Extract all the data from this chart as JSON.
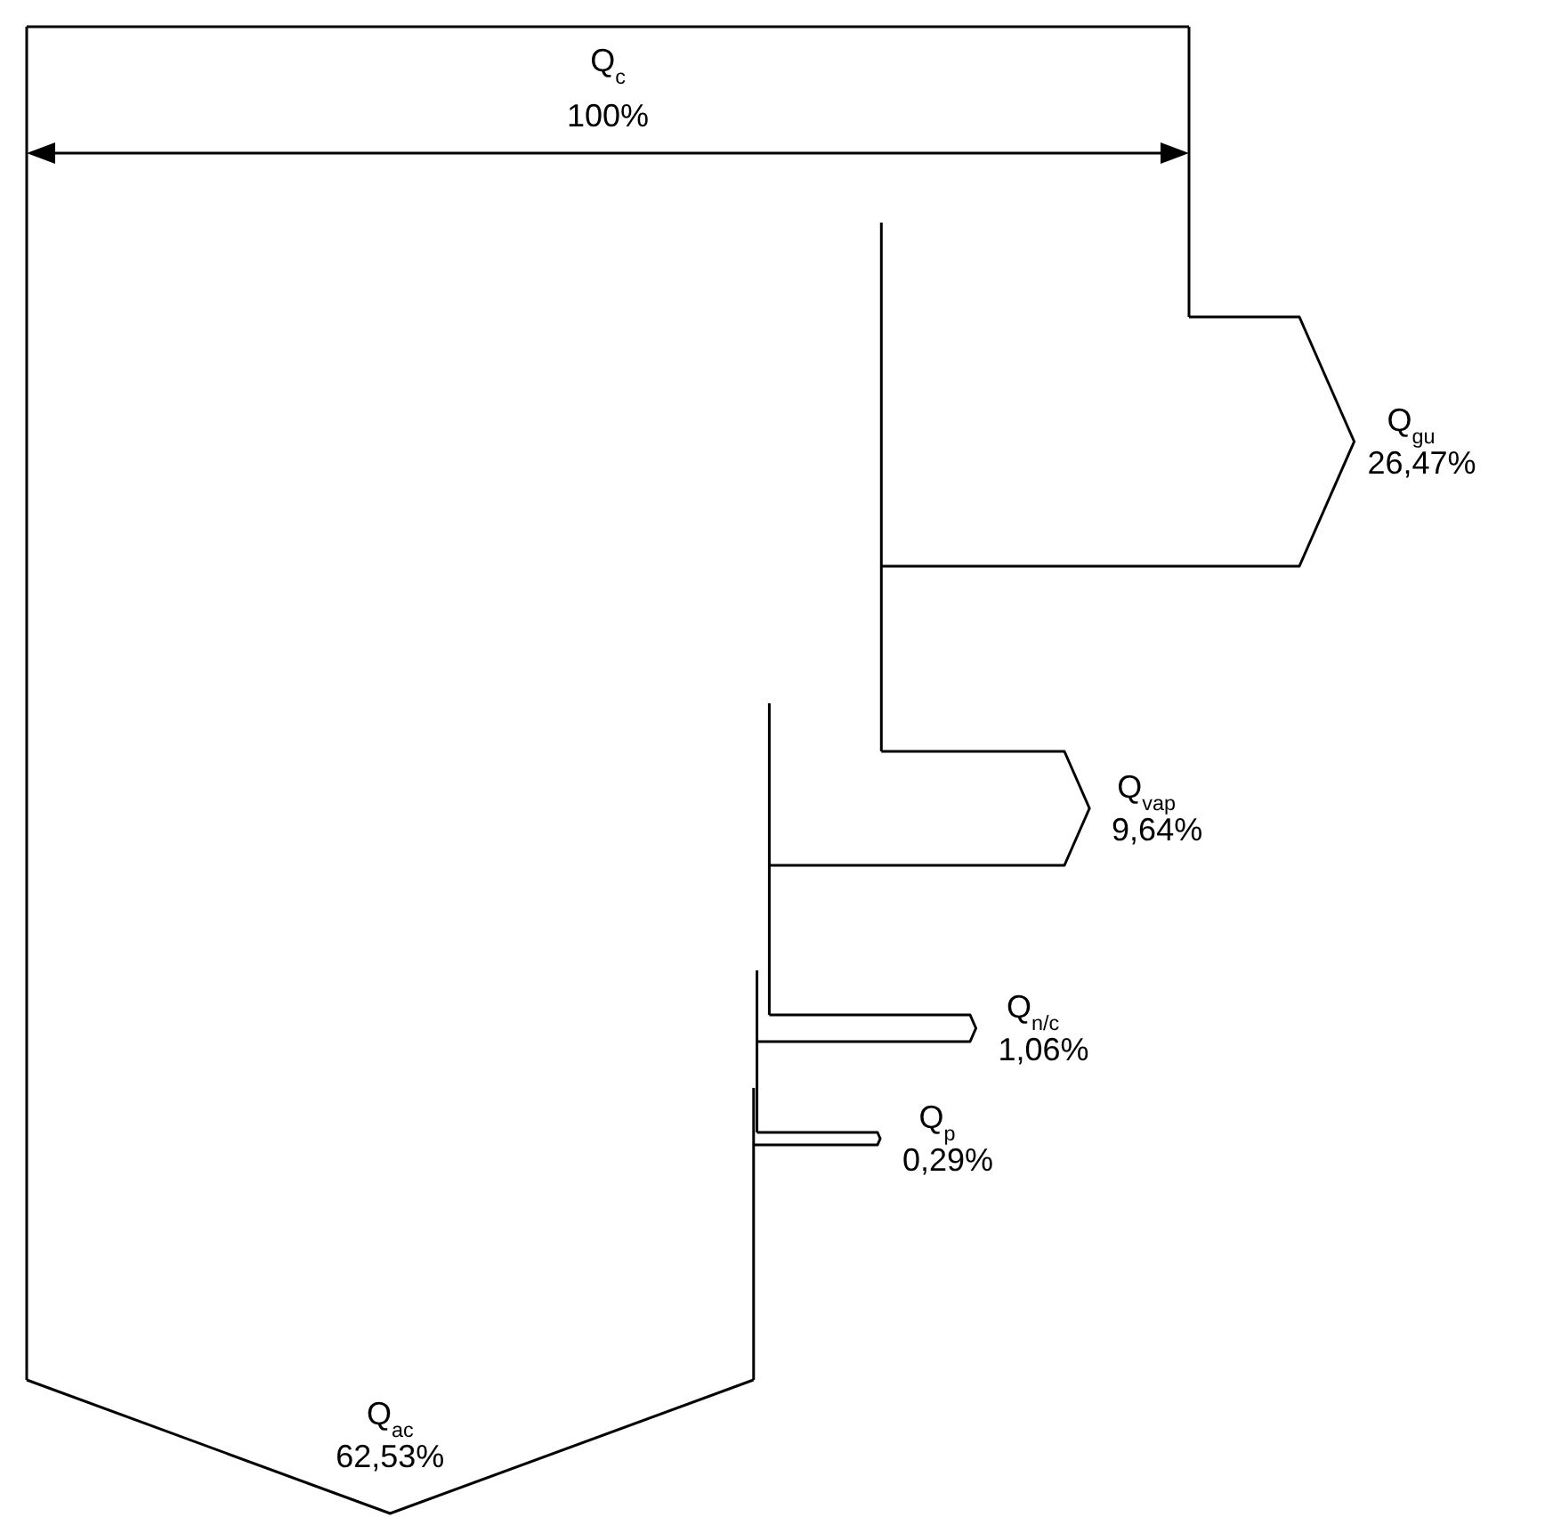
{
  "chart_data": {
    "type": "other",
    "categories": [
      "Q$_{c}$",
      "Q$_{gu}$",
      "Q$_{vap}$",
      "Q$_{n/c}$",
      "Q$_{p}$",
      "Q$_{ac}$"
    ],
    "values": [
      100,
      26.47,
      9.64,
      1.06,
      0.29,
      62.53
    ],
    "value_labels": [
      "100%",
      "26,47%",
      "9,64%",
      "1,06%",
      "0,29%",
      "62,53%"
    ]
  }
}
